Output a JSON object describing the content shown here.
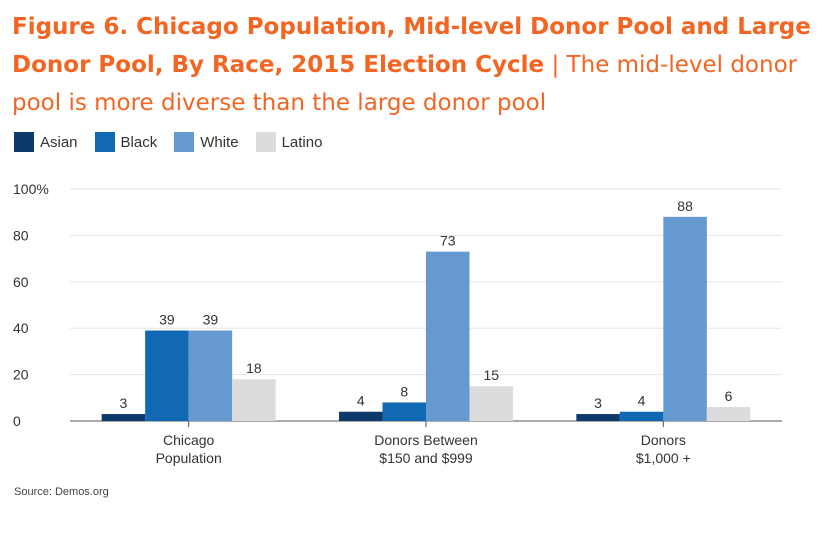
{
  "figure": {
    "title_bold": "Figure 6. Chicago Population, Mid-level Donor Pool and Large Donor Pool, By Race, 2015 Election Cycle",
    "separator": " | ",
    "subtitle": "The mid-level donor pool is more diverse than the large donor pool",
    "source": "Source: Demos.org"
  },
  "colors": {
    "title": "#f26522",
    "Asian": "#0d3a6b",
    "Black": "#1269b3",
    "White": "#6699cf",
    "Latino": "#dcdcdc",
    "grid": "#e6e6e6",
    "axis": "#555555"
  },
  "chart_data": {
    "type": "bar",
    "categories": [
      [
        "Chicago",
        "Population"
      ],
      [
        "Donors Between",
        "$150 and $999"
      ],
      [
        "Donors",
        "$1,000 +"
      ]
    ],
    "series": [
      {
        "name": "Asian",
        "values": [
          3,
          4,
          3
        ]
      },
      {
        "name": "Black",
        "values": [
          39,
          8,
          4
        ]
      },
      {
        "name": "White",
        "values": [
          39,
          73,
          88
        ]
      },
      {
        "name": "Latino",
        "values": [
          18,
          15,
          6
        ]
      }
    ],
    "ylim": [
      0,
      100
    ],
    "yticks": [
      "0",
      "20",
      "40",
      "60",
      "80",
      "100%"
    ],
    "ytick_values": [
      0,
      20,
      40,
      60,
      80,
      100
    ],
    "grid": true,
    "legend": "top-left"
  }
}
